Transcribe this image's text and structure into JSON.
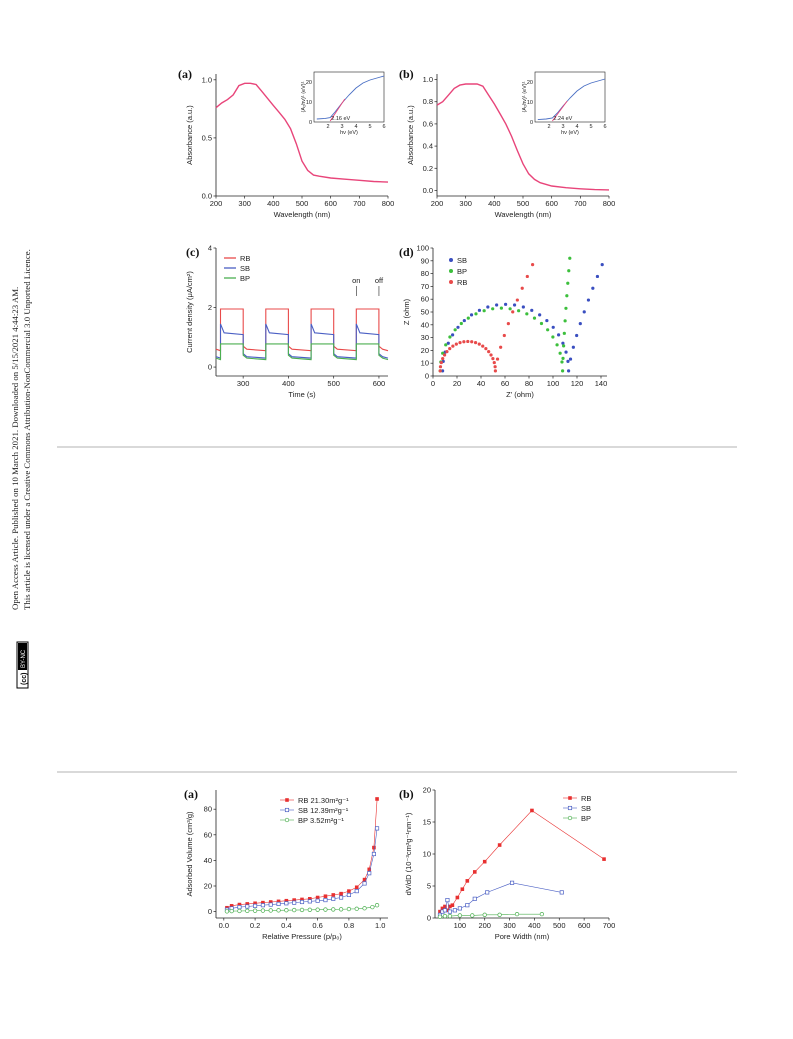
{
  "sidebar": {
    "line1": "Open Access Article. Published on 10 March 2021. Downloaded on 5/15/2021 4:44:23 AM.",
    "line2": "This article is licensed under a Creative Commons Attribution-NonCommercial 3.0 Unported Licence.",
    "cc_badge": "(cc)",
    "by_badge": "BY-NC"
  },
  "figure1": {
    "panel_a": {
      "label": "(a)",
      "chart_data": {
        "type": "line",
        "xlabel": "Wavelength (nm)",
        "ylabel": "Absorbance (a.u.)",
        "xlim": [
          200,
          800
        ],
        "ylim": [
          0,
          1.05
        ],
        "xticks": [
          "200",
          "300",
          "400",
          "500",
          "600",
          "700",
          "800"
        ],
        "yticks": [
          "0.0",
          "0.5",
          "1.0"
        ],
        "color": "#e8457a",
        "x": [
          200,
          220,
          240,
          260,
          280,
          300,
          320,
          340,
          360,
          380,
          400,
          420,
          440,
          460,
          480,
          500,
          520,
          540,
          560,
          600,
          650,
          700,
          750,
          800
        ],
        "y": [
          0.76,
          0.8,
          0.83,
          0.87,
          0.95,
          0.97,
          0.97,
          0.96,
          0.9,
          0.84,
          0.78,
          0.72,
          0.66,
          0.58,
          0.45,
          0.3,
          0.22,
          0.18,
          0.17,
          0.155,
          0.145,
          0.135,
          0.125,
          0.12
        ],
        "inset": {
          "xlabel": "hν (eV)",
          "ylabel": "(A₂hν)¹ (eV)¹",
          "annotation": "2.16 eV",
          "xlim": [
            1,
            6
          ],
          "ylim": [
            0,
            25
          ],
          "xticks": [
            "2",
            "3",
            "4",
            "5",
            "6"
          ],
          "yticks": [
            "0",
            "10",
            "20"
          ],
          "line_color": "#4a6fc4",
          "tangent_color": "#e8457a",
          "x": [
            1.2,
            1.8,
            2.16,
            2.5,
            3.0,
            3.5,
            4.0,
            4.5,
            5.0,
            5.5,
            6.0
          ],
          "y": [
            1.5,
            1.8,
            2.2,
            5.0,
            9.5,
            13.5,
            17.0,
            19.5,
            21.0,
            22.0,
            23.0
          ],
          "tangent_x": [
            2.16,
            3.2
          ],
          "tangent_y": [
            0.5,
            11.5
          ]
        }
      }
    },
    "panel_b": {
      "label": "(b)",
      "chart_data": {
        "type": "line",
        "xlabel": "Wavelength (nm)",
        "ylabel": "Absorbance (a.u.)",
        "xlim": [
          200,
          800
        ],
        "ylim": [
          -0.05,
          1.05
        ],
        "xticks": [
          "200",
          "300",
          "400",
          "500",
          "600",
          "700",
          "800"
        ],
        "yticks": [
          "0.0",
          "0.2",
          "0.4",
          "0.6",
          "0.8",
          "1.0"
        ],
        "color": "#e8457a",
        "x": [
          200,
          220,
          240,
          260,
          280,
          300,
          320,
          340,
          360,
          380,
          400,
          420,
          440,
          460,
          480,
          500,
          520,
          540,
          560,
          600,
          650,
          700,
          750,
          800
        ],
        "y": [
          0.77,
          0.8,
          0.86,
          0.92,
          0.95,
          0.96,
          0.96,
          0.96,
          0.94,
          0.86,
          0.78,
          0.69,
          0.6,
          0.49,
          0.36,
          0.24,
          0.15,
          0.1,
          0.07,
          0.04,
          0.025,
          0.015,
          0.008,
          0.005
        ],
        "inset": {
          "xlabel": "hν (eV)",
          "ylabel": "(A₂hν)¹ (eV)¹",
          "annotation": "2.24 eV",
          "xlim": [
            1,
            6
          ],
          "ylim": [
            0,
            25
          ],
          "xticks": [
            "2",
            "3",
            "4",
            "5",
            "6"
          ],
          "yticks": [
            "0",
            "10",
            "20"
          ],
          "line_color": "#4a6fc4",
          "tangent_color": "#e8457a",
          "x": [
            1.2,
            1.8,
            2.24,
            2.6,
            3.0,
            3.5,
            4.0,
            4.5,
            5.0,
            5.5,
            6.0
          ],
          "y": [
            1.2,
            1.5,
            2.0,
            4.5,
            8.0,
            12.0,
            15.5,
            18.0,
            19.5,
            20.5,
            21.5
          ],
          "tangent_x": [
            2.24,
            3.3
          ],
          "tangent_y": [
            0.5,
            10.5
          ]
        }
      }
    },
    "panel_c": {
      "label": "(c)",
      "chart_data": {
        "type": "line",
        "xlabel": "Time (s)",
        "ylabel": "Current density (μA/cm²)",
        "xlim": [
          240,
          620
        ],
        "ylim": [
          -0.3,
          4
        ],
        "xticks": [
          "300",
          "400",
          "500",
          "600"
        ],
        "yticks": [
          "0",
          "2",
          "4"
        ],
        "annotations": [
          "on",
          "off"
        ],
        "light_on": [
          [
            250,
            300
          ],
          [
            350,
            400
          ],
          [
            450,
            500
          ],
          [
            550,
            600
          ]
        ],
        "series": [
          {
            "name": "RB",
            "color": "#e84a4a",
            "dark": 0.55,
            "light": 1.95,
            "decay": 0.0
          },
          {
            "name": "SB",
            "color": "#4a5fc4",
            "dark": 0.3,
            "light": 1.15,
            "decay": 0.3
          },
          {
            "name": "BP",
            "color": "#4caf50",
            "dark": 0.25,
            "light": 0.78,
            "decay": 0.0
          }
        ]
      }
    },
    "panel_d": {
      "label": "(d)",
      "chart_data": {
        "type": "scatter",
        "xlabel": "Z' (ohm)",
        "ylabel": "Z (ohm)",
        "xlim": [
          0,
          145
        ],
        "ylim": [
          0,
          100
        ],
        "xticks": [
          "0",
          "20",
          "40",
          "60",
          "80",
          "100",
          "120",
          "140"
        ],
        "yticks": [
          "0",
          "10",
          "20",
          "30",
          "40",
          "50",
          "60",
          "70",
          "80",
          "90",
          "100"
        ],
        "series": [
          {
            "name": "SB",
            "color": "#3a4fc0",
            "arc_start": 8,
            "arc_end": 113,
            "peak": 52,
            "tail_x": 141,
            "tail_y": 87
          },
          {
            "name": "BP",
            "color": "#3cbf3c",
            "arc_start": 6,
            "arc_end": 108,
            "peak": 49,
            "tail_x": 114,
            "tail_y": 92
          },
          {
            "name": "RB",
            "color": "#e84a4a",
            "arc_start": 6,
            "arc_end": 52,
            "peak": 23,
            "tail_x": 83,
            "tail_y": 87
          }
        ]
      }
    }
  },
  "figure2": {
    "panel_a": {
      "label": "(a)",
      "chart_data": {
        "type": "scatter",
        "xlabel": "Relative Pressure (p/p₀)",
        "ylabel": "Adsorbed Volume (cm³/g)",
        "xlim": [
          -0.05,
          1.05
        ],
        "ylim": [
          -5,
          95
        ],
        "xticks": [
          "0.0",
          "0.2",
          "0.4",
          "0.6",
          "0.8",
          "1.0"
        ],
        "yticks": [
          "0",
          "20",
          "40",
          "60",
          "80"
        ],
        "series": [
          {
            "name": "RB 21.30m²g⁻¹",
            "color": "#e83030",
            "marker": "square-filled",
            "x": [
              0.02,
              0.05,
              0.1,
              0.15,
              0.2,
              0.25,
              0.3,
              0.35,
              0.4,
              0.45,
              0.5,
              0.55,
              0.6,
              0.65,
              0.7,
              0.75,
              0.8,
              0.85,
              0.9,
              0.93,
              0.96,
              0.98
            ],
            "y": [
              3,
              4.5,
              5.5,
              6,
              6.5,
              7,
              7.5,
              8,
              8.5,
              9,
              9.5,
              10,
              11,
              12,
              13,
              14,
              16,
              19,
              25,
              33,
              50,
              88
            ]
          },
          {
            "name": "SB 12.39m²g⁻¹",
            "color": "#4a5fc4",
            "marker": "square-open",
            "x": [
              0.02,
              0.05,
              0.1,
              0.15,
              0.2,
              0.25,
              0.3,
              0.35,
              0.4,
              0.45,
              0.5,
              0.55,
              0.6,
              0.65,
              0.7,
              0.75,
              0.8,
              0.85,
              0.9,
              0.93,
              0.96,
              0.98
            ],
            "y": [
              1.5,
              2.5,
              3.5,
              4,
              4.5,
              5,
              5.5,
              6,
              6.5,
              7,
              7.5,
              8,
              8.5,
              9,
              10,
              11,
              13,
              16,
              22,
              30,
              45,
              65
            ]
          },
          {
            "name": "BP 3.52m²g⁻¹",
            "color": "#4caf50",
            "marker": "circle-open",
            "x": [
              0.02,
              0.05,
              0.1,
              0.15,
              0.2,
              0.25,
              0.3,
              0.35,
              0.4,
              0.45,
              0.5,
              0.55,
              0.6,
              0.65,
              0.7,
              0.75,
              0.8,
              0.85,
              0.9,
              0.95,
              0.98
            ],
            "y": [
              0.2,
              0.4,
              0.5,
              0.6,
              0.7,
              0.8,
              0.9,
              1.0,
              1.1,
              1.2,
              1.3,
              1.4,
              1.5,
              1.6,
              1.7,
              1.8,
              2.0,
              2.2,
              2.6,
              3.5,
              5
            ]
          }
        ]
      }
    },
    "panel_b": {
      "label": "(b)",
      "chart_data": {
        "type": "line",
        "xlabel": "Pore Width (nm)",
        "ylabel": "dV/dD (10⁻³cm³g⁻¹nm⁻¹)",
        "xlim": [
          0,
          700
        ],
        "ylim": [
          0,
          20
        ],
        "xticks": [
          "100",
          "200",
          "300",
          "400",
          "500",
          "600",
          "700"
        ],
        "yticks": [
          "0",
          "5",
          "10",
          "15",
          "20"
        ],
        "series": [
          {
            "name": "RB",
            "color": "#e83030",
            "marker": "square-filled",
            "x": [
              20,
              30,
              40,
              50,
              60,
              70,
              90,
              110,
              130,
              160,
              200,
              260,
              390,
              680
            ],
            "y": [
              1.0,
              1.5,
              1.8,
              1.2,
              1.8,
              2.0,
              3.2,
              4.5,
              5.8,
              7.2,
              8.8,
              11.4,
              16.8,
              9.2
            ]
          },
          {
            "name": "SB",
            "color": "#4a5fc4",
            "marker": "square-open",
            "x": [
              20,
              30,
              40,
              50,
              60,
              80,
              100,
              130,
              160,
              210,
              310,
              510
            ],
            "y": [
              0.5,
              1.0,
              1.2,
              2.8,
              1.0,
              1.2,
              1.5,
              2.0,
              3.0,
              4.0,
              5.5,
              4.0
            ]
          },
          {
            "name": "BP",
            "color": "#4caf50",
            "marker": "circle-open",
            "x": [
              20,
              40,
              60,
              100,
              150,
              200,
              260,
              330,
              430
            ],
            "y": [
              0.2,
              0.3,
              0.3,
              0.4,
              0.4,
              0.5,
              0.5,
              0.6,
              0.6
            ]
          }
        ]
      }
    }
  }
}
